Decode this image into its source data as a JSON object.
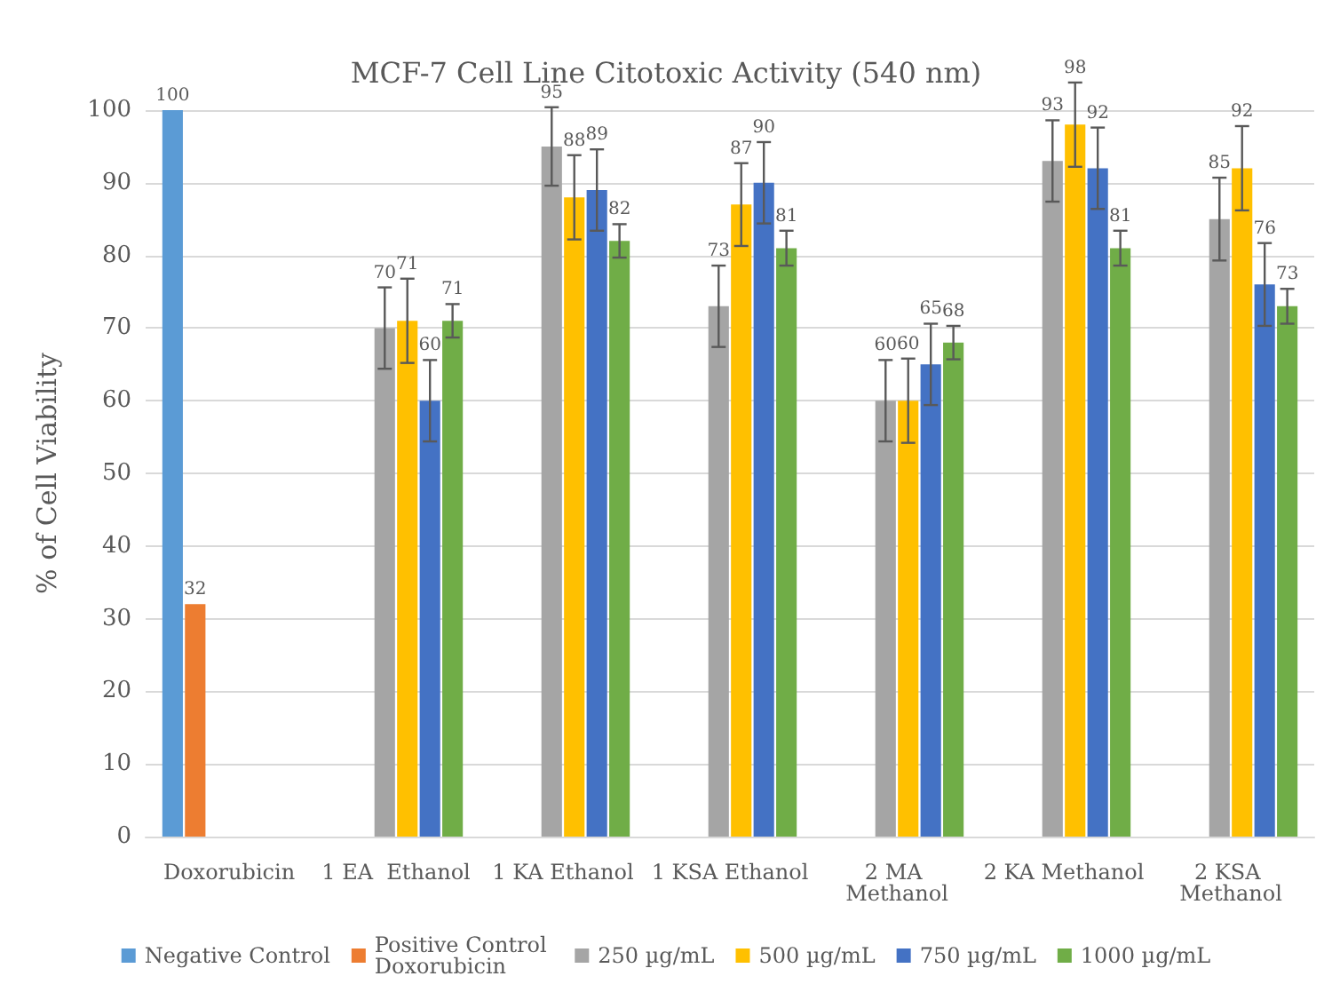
{
  "chart_data": {
    "type": "bar",
    "title": "MCF-7 Cell Line Citotoxic Activity (540 nm)",
    "ylabel": "% of Cell Viability",
    "categories": [
      "Doxorubicin",
      "1 EA  Ethanol",
      "1 KA Ethanol",
      "1 KSA Ethanol",
      "2 MA Methanol",
      "2 KA Methanol",
      "2 KSA Methanol"
    ],
    "series": [
      {
        "name": "Negative Control",
        "color": "#5b9bd5",
        "values": [
          100,
          null,
          null,
          null,
          null,
          null,
          null
        ]
      },
      {
        "name": "Positive Control Doxorubicin",
        "color": "#ed7d31",
        "values": [
          32,
          null,
          null,
          null,
          null,
          null,
          null
        ]
      },
      {
        "name": "250 µg/mL",
        "color": "#a5a5a5",
        "values": [
          null,
          70,
          95,
          73,
          60,
          93,
          85
        ],
        "errors": [
          null,
          5.6,
          5.4,
          5.6,
          5.6,
          5.6,
          5.7
        ]
      },
      {
        "name": "500 µg/mL",
        "color": "#ffc000",
        "values": [
          null,
          71,
          88,
          87,
          60,
          98,
          92
        ],
        "errors": [
          null,
          5.8,
          5.8,
          5.7,
          5.8,
          5.8,
          5.8
        ]
      },
      {
        "name": "750 µg/mL",
        "color": "#4472c4",
        "values": [
          null,
          60,
          89,
          90,
          65,
          92,
          76
        ],
        "errors": [
          null,
          5.6,
          5.6,
          5.6,
          5.6,
          5.6,
          5.7
        ]
      },
      {
        "name": "1000 µg/mL",
        "color": "#70ad47",
        "values": [
          null,
          71,
          82,
          81,
          68,
          81,
          73
        ],
        "errors": [
          null,
          2.3,
          2.3,
          2.4,
          2.3,
          2.4,
          2.4
        ]
      }
    ],
    "ylim": [
      0,
      100
    ],
    "yticks": [
      0,
      10,
      20,
      30,
      40,
      50,
      60,
      70,
      80,
      90,
      100
    ],
    "grid": "y",
    "legend": "bottom",
    "data_labels": true
  }
}
